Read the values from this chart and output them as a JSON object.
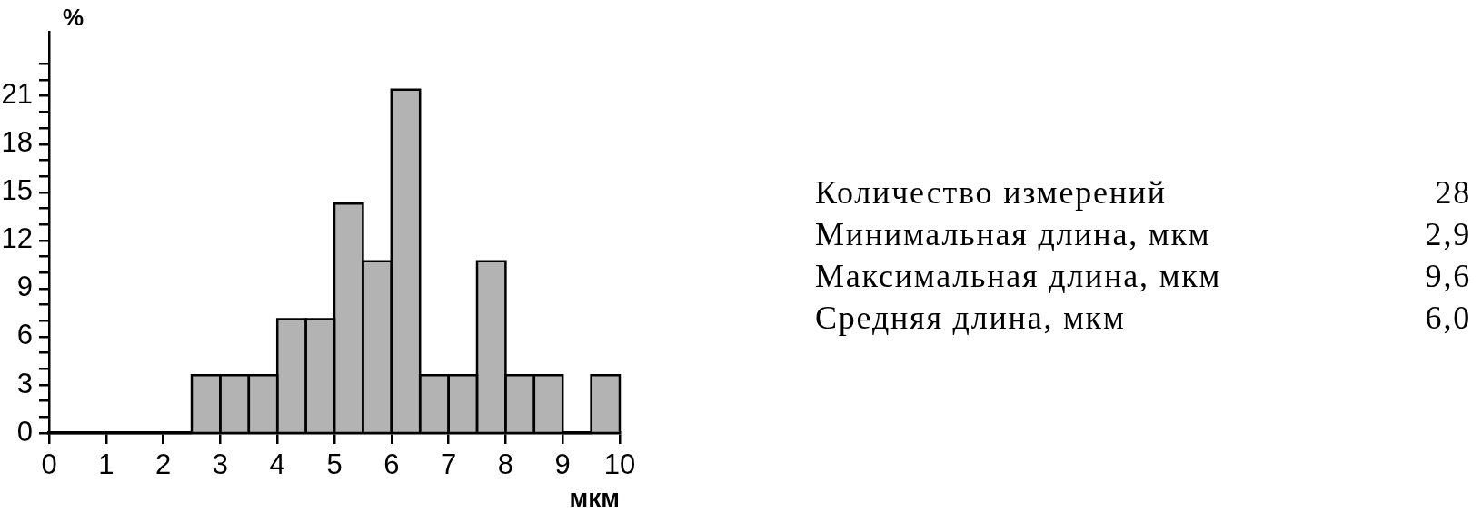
{
  "chart_data": [
    {
      "type": "histogram",
      "xlabel": "мкм",
      "ylabel": "%",
      "bins": [
        0,
        0.5,
        1,
        1.5,
        2,
        2.5,
        3,
        3.5,
        4,
        4.5,
        5,
        5.5,
        6,
        6.5,
        7,
        7.5,
        8,
        8.5,
        9,
        9.5,
        10
      ],
      "values": [
        0,
        0,
        0,
        0,
        0,
        3.6,
        3.6,
        3.6,
        7.1,
        7.1,
        14.3,
        10.7,
        21.4,
        3.6,
        3.6,
        10.7,
        3.6,
        3.6,
        0,
        3.6
      ],
      "color": "#b3b3b3",
      "xlim": [
        0,
        10
      ],
      "xticks": [
        0,
        1,
        2,
        3,
        4,
        5,
        6,
        7,
        8,
        9,
        10
      ],
      "ylim": [
        0,
        25
      ],
      "yticks": [
        0,
        {
          "value": 1,
          "label": null
        },
        {
          "value": 2,
          "label": null
        },
        3,
        {
          "value": 4,
          "label": null
        },
        {
          "value": 5,
          "label": null
        },
        6,
        {
          "value": 7,
          "label": null
        },
        {
          "value": 8,
          "label": null
        },
        9,
        {
          "value": 10,
          "label": null
        },
        {
          "value": 11,
          "label": null
        },
        12,
        {
          "value": 13,
          "label": null
        },
        {
          "value": 14,
          "label": null
        },
        15,
        {
          "value": 16,
          "label": null
        },
        {
          "value": 17,
          "label": null
        },
        18,
        {
          "value": 19,
          "label": null
        },
        {
          "value": 20,
          "label": null
        },
        21,
        {
          "value": 22,
          "label": null
        },
        {
          "value": 23,
          "label": null
        }
      ]
    },
    {
      "type": "other",
      "annotations": [
        "Количество измерений",
        "28",
        "Минимальная длина, мкм",
        "2,9",
        "Максимальная длина, мкм",
        "9,6",
        "Средняя длина, мкм",
        "6,0"
      ]
    }
  ]
}
